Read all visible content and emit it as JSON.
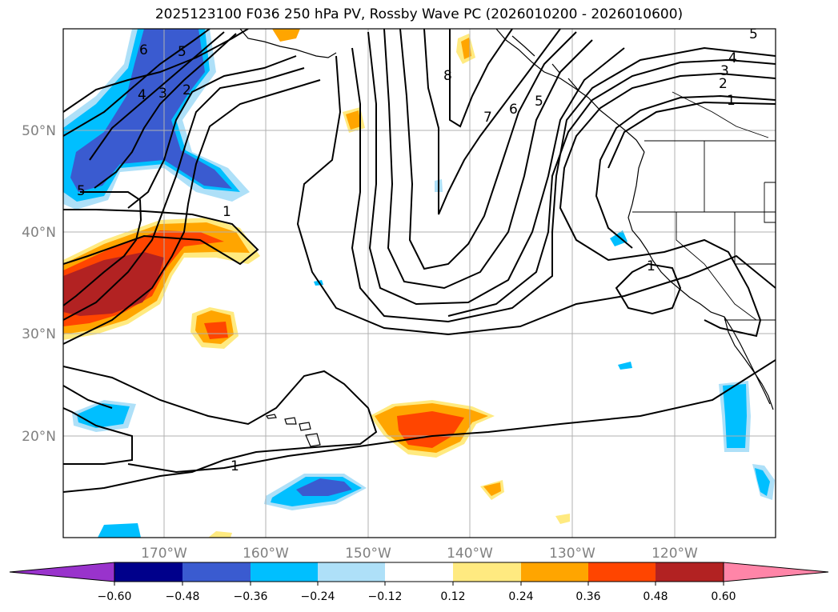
{
  "title": "2025123100 F036 250 hPa PV, Rossby Wave PC (2026010200 - 2026010600)",
  "lat_labels": [
    "50°N",
    "40°N",
    "30°N",
    "20°N"
  ],
  "lon_labels": [
    "170°W",
    "160°W",
    "150°W",
    "140°W",
    "130°W",
    "120°W"
  ],
  "contour_labels": [
    "6",
    "5",
    "4",
    "3",
    "2",
    "1",
    "5",
    "1",
    "1",
    "8",
    "7",
    "6",
    "5",
    "4",
    "3",
    "2",
    "1",
    "5"
  ],
  "colorbar": {
    "ticks": [
      "−0.60",
      "−0.48",
      "−0.36",
      "−0.24",
      "−0.12",
      "0.12",
      "0.24",
      "0.36",
      "0.48",
      "0.60"
    ],
    "colors": [
      "#9933cc",
      "#00008b",
      "#3a5bd0",
      "#00bfff",
      "#aee0f8",
      "#ffffff",
      "#ffea80",
      "#ffa500",
      "#ff4500",
      "#b22222",
      "#ff85a8"
    ]
  },
  "fill_colors": {
    "neg_light": "#aee0f8",
    "neg_mid": "#00bfff",
    "neg_dark": "#3a5bd0",
    "pos_light": "#ffea80",
    "pos_mid": "#ffa500",
    "pos_dark": "#ff4500",
    "pos_darker": "#b22222"
  }
}
